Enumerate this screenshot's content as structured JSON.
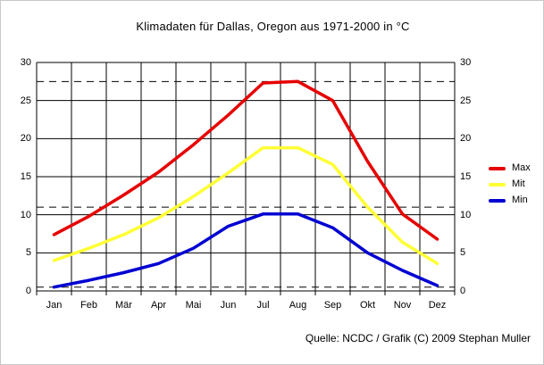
{
  "title": "Klimadaten für Dallas, Oregon aus 1971-2000 in °C",
  "footer": "Quelle: NCDC / Grafik (C) 2009 Stephan Muller",
  "legend": [
    {
      "label": "Max",
      "color": "#e60000"
    },
    {
      "label": "Mit",
      "color": "#ffff33"
    },
    {
      "label": "Min",
      "color": "#0000d2"
    }
  ],
  "chart_data": {
    "type": "line",
    "title": "Klimadaten für Dallas, Oregon aus 1971-2000 in °C",
    "categories": [
      "Jan",
      "Feb",
      "Mär",
      "Apr",
      "Mai",
      "Jun",
      "Jul",
      "Aug",
      "Sep",
      "Okt",
      "Nov",
      "Dez"
    ],
    "series": [
      {
        "name": "Max",
        "color": "#e60000",
        "values": [
          7.4,
          9.8,
          12.6,
          15.6,
          19.2,
          23.1,
          27.3,
          27.5,
          25.0,
          17.0,
          10.1,
          6.8
        ]
      },
      {
        "name": "Mit",
        "color": "#ffff33",
        "values": [
          4.0,
          5.6,
          7.4,
          9.6,
          12.4,
          15.5,
          18.8,
          18.8,
          16.6,
          11.0,
          6.4,
          3.6
        ]
      },
      {
        "name": "Min",
        "color": "#0000d2",
        "values": [
          0.5,
          1.4,
          2.4,
          3.6,
          5.6,
          8.5,
          10.1,
          10.1,
          8.3,
          5.0,
          2.7,
          0.7
        ]
      }
    ],
    "xlabel": "",
    "ylabel": "",
    "ylim": [
      0,
      30
    ],
    "yticks": [
      0,
      5,
      10,
      15,
      20,
      25,
      30
    ],
    "reference_lines": [
      27.5,
      11,
      0.5
    ],
    "grid": true,
    "grid_color": "#000000",
    "legend_position": "right",
    "axis_labels_both_sides": true
  }
}
